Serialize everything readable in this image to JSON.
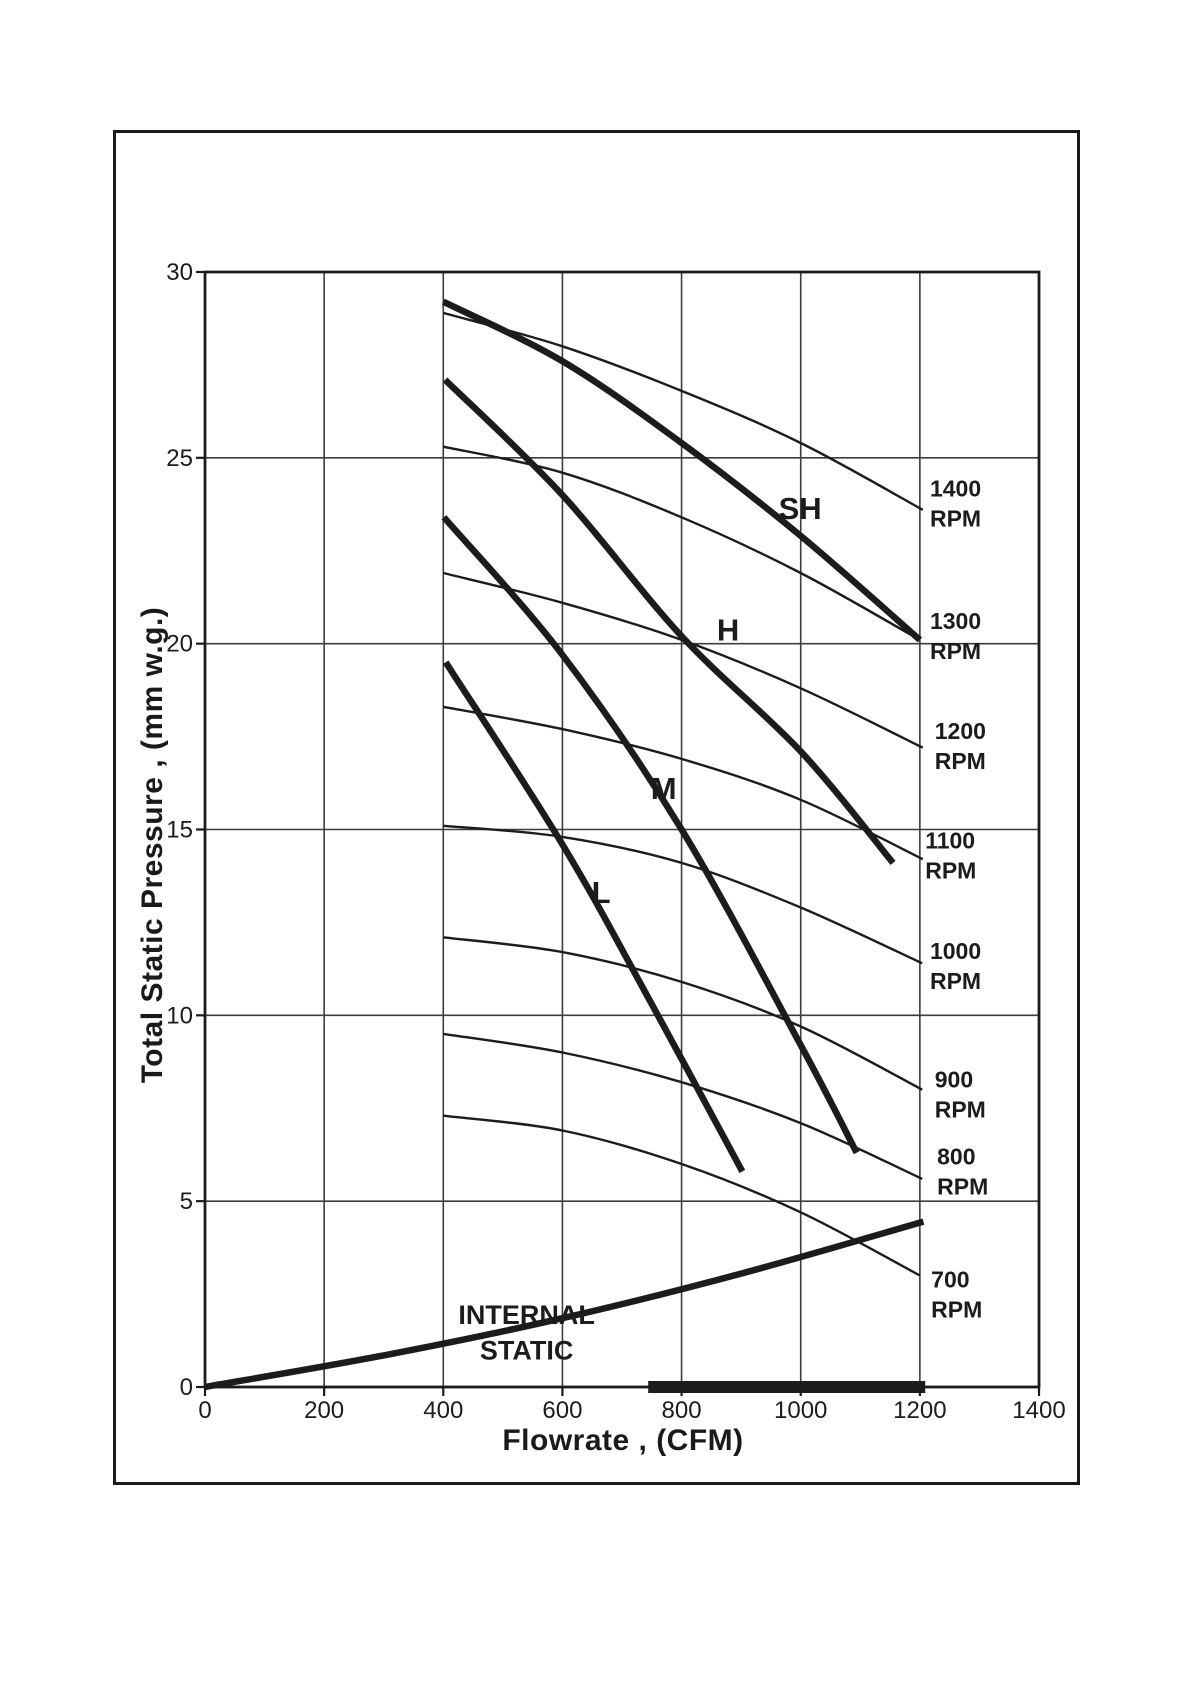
{
  "figure": {
    "background": "#ffffff",
    "border_color": "#1a1a1a",
    "ink_color": "#1c1c1c",
    "grid_color": "#3d3d3d"
  },
  "chart_data": {
    "type": "line",
    "title": "",
    "xlabel": "Flowrate , (CFM)",
    "ylabel": "Total Static Pressure , (mm w.g.)",
    "xlim": [
      0,
      1400
    ],
    "ylim": [
      0,
      30
    ],
    "x_ticks": [
      0,
      200,
      400,
      600,
      800,
      1000,
      1200,
      1400
    ],
    "y_ticks": [
      0,
      5,
      10,
      15,
      20,
      25,
      30
    ],
    "grid": "on",
    "legend": "labels drawn beside curve endpoints",
    "series": [
      {
        "name": "1400 RPM",
        "role": "rpm-curve",
        "style": "thin",
        "points": [
          [
            400,
            28.9
          ],
          [
            600,
            28.0
          ],
          [
            800,
            26.8
          ],
          [
            1000,
            25.4
          ],
          [
            1205,
            23.6
          ]
        ],
        "label": {
          "lines": [
            "1400",
            "RPM"
          ],
          "cfm": 1217,
          "p": 23.78,
          "anchor": "start",
          "size": "sm"
        }
      },
      {
        "name": "1300 RPM",
        "role": "rpm-curve",
        "style": "thin",
        "points": [
          [
            400,
            25.3
          ],
          [
            600,
            24.6
          ],
          [
            800,
            23.4
          ],
          [
            1000,
            21.9
          ],
          [
            1200,
            20.1
          ]
        ],
        "label": {
          "lines": [
            "1300",
            "RPM"
          ],
          "cfm": 1217,
          "p": 20.21,
          "anchor": "start",
          "size": "sm"
        }
      },
      {
        "name": "1200 RPM",
        "role": "rpm-curve",
        "style": "thin",
        "points": [
          [
            400,
            21.9
          ],
          [
            600,
            21.1
          ],
          [
            800,
            20.1
          ],
          [
            1000,
            18.8
          ],
          [
            1205,
            17.2
          ]
        ],
        "label": {
          "lines": [
            "1200",
            "RPM"
          ],
          "cfm": 1225,
          "p": 17.25,
          "anchor": "start",
          "size": "sm"
        }
      },
      {
        "name": "1100 RPM",
        "role": "rpm-curve",
        "style": "thin",
        "points": [
          [
            400,
            18.3
          ],
          [
            600,
            17.7
          ],
          [
            800,
            16.9
          ],
          [
            1000,
            15.8
          ],
          [
            1205,
            14.2
          ]
        ],
        "label": {
          "lines": [
            "1100",
            "RPM"
          ],
          "cfm": 1209,
          "p": 14.31,
          "anchor": "start",
          "size": "sm"
        }
      },
      {
        "name": "1000 RPM",
        "role": "rpm-curve",
        "style": "thin",
        "points": [
          [
            400,
            15.1
          ],
          [
            600,
            14.8
          ],
          [
            800,
            14.1
          ],
          [
            1000,
            12.9
          ],
          [
            1204,
            11.4
          ]
        ],
        "label": {
          "lines": [
            "1000",
            "RPM"
          ],
          "cfm": 1217,
          "p": 11.33,
          "anchor": "start",
          "size": "sm"
        }
      },
      {
        "name": "900 RPM",
        "role": "rpm-curve",
        "style": "thin",
        "points": [
          [
            400,
            12.1
          ],
          [
            600,
            11.7
          ],
          [
            800,
            10.9
          ],
          [
            1000,
            9.7
          ],
          [
            1204,
            8.0
          ]
        ],
        "label": {
          "lines": [
            "900",
            "RPM"
          ],
          "cfm": 1225,
          "p": 7.88,
          "anchor": "start",
          "size": "sm"
        }
      },
      {
        "name": "800 RPM",
        "role": "rpm-curve",
        "style": "thin",
        "points": [
          [
            400,
            9.5
          ],
          [
            600,
            9.0
          ],
          [
            800,
            8.2
          ],
          [
            1000,
            7.1
          ],
          [
            1204,
            5.6
          ]
        ],
        "label": {
          "lines": [
            "800",
            "RPM"
          ],
          "cfm": 1229,
          "p": 5.81,
          "anchor": "start",
          "size": "sm"
        }
      },
      {
        "name": "700 RPM",
        "role": "rpm-curve",
        "style": "thin",
        "points": [
          [
            400,
            7.3
          ],
          [
            600,
            6.9
          ],
          [
            800,
            6.0
          ],
          [
            1000,
            4.7
          ],
          [
            1200,
            3.0
          ]
        ],
        "label": {
          "lines": [
            "700",
            "RPM"
          ],
          "cfm": 1219,
          "p": 2.5,
          "anchor": "start",
          "size": "sm"
        }
      },
      {
        "name": "SH",
        "role": "speed-curve",
        "style": "thick",
        "points": [
          [
            400,
            29.2
          ],
          [
            600,
            27.6
          ],
          [
            800,
            25.4
          ],
          [
            1000,
            22.9
          ],
          [
            1200,
            20.1
          ]
        ],
        "label": {
          "lines": [
            "SH"
          ],
          "cfm": 999,
          "p": 23.65,
          "anchor": "middle",
          "size": "lg"
        }
      },
      {
        "name": "H",
        "role": "speed-curve",
        "style": "thick",
        "points": [
          [
            403,
            27.1
          ],
          [
            600,
            24.0
          ],
          [
            800,
            20.2
          ],
          [
            1000,
            17.1
          ],
          [
            1155,
            14.1
          ]
        ],
        "label": {
          "lines": [
            "H"
          ],
          "cfm": 878,
          "p": 20.39,
          "anchor": "middle",
          "size": "lg"
        }
      },
      {
        "name": "M",
        "role": "speed-curve",
        "style": "thick",
        "points": [
          [
            401,
            23.4
          ],
          [
            600,
            19.7
          ],
          [
            800,
            15.0
          ],
          [
            1000,
            9.2
          ],
          [
            1094,
            6.3
          ]
        ],
        "label": {
          "lines": [
            "M"
          ],
          "cfm": 770,
          "p": 16.12,
          "anchor": "middle",
          "size": "lg"
        }
      },
      {
        "name": "L",
        "role": "speed-curve",
        "style": "thick",
        "points": [
          [
            404,
            19.5
          ],
          [
            600,
            14.6
          ],
          [
            750,
            10.3
          ],
          [
            902,
            5.8
          ]
        ],
        "label": {
          "lines": [
            "L"
          ],
          "cfm": 665,
          "p": 13.32,
          "anchor": "middle",
          "size": "lg"
        }
      },
      {
        "name": "INTERNAL STATIC",
        "role": "system-curve",
        "style": "thick",
        "points": [
          [
            0,
            0
          ],
          [
            300,
            0.85
          ],
          [
            600,
            1.85
          ],
          [
            900,
            3.05
          ],
          [
            1206,
            4.45
          ]
        ],
        "label": {
          "lines": [
            "INTERNAL",
            "STATIC"
          ],
          "cfm": 540,
          "p": 1.48,
          "anchor": "middle",
          "size": "md"
        }
      }
    ],
    "operating_range_bar": {
      "from_cfm": 744,
      "to_cfm": 1209
    }
  }
}
